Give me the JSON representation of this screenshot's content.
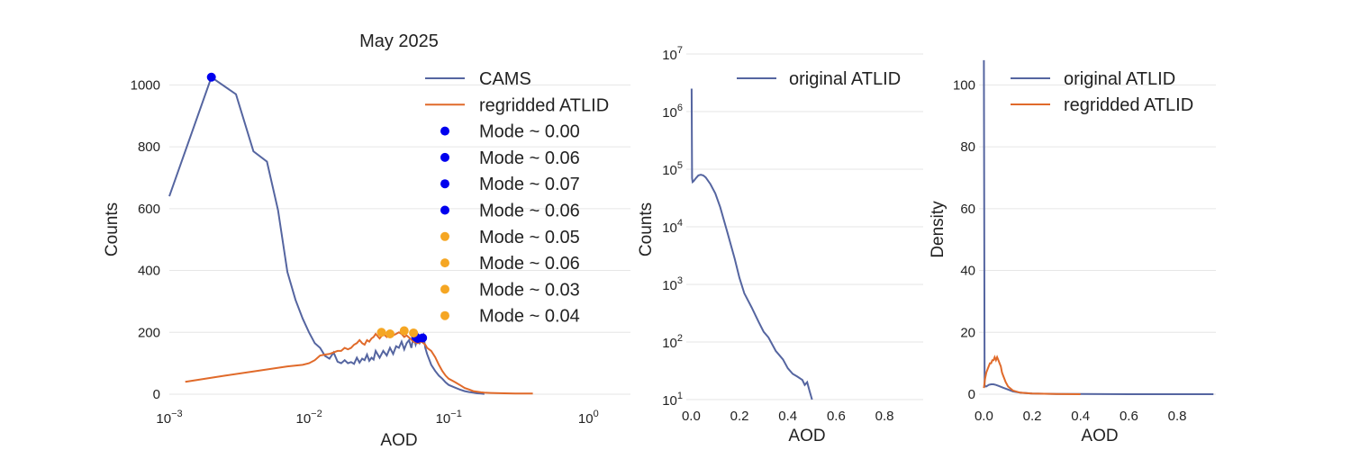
{
  "colors": {
    "cams": "#5565a0",
    "atlid": "#e06a2a",
    "mode_cams": "#0000ee",
    "mode_atlid": "#f5a623"
  },
  "chart_data": [
    {
      "type": "line",
      "title": "May 2025",
      "xlabel": "AOD",
      "ylabel": "Counts",
      "xscale": "log",
      "xlim": [
        0.001,
        2
      ],
      "ylim": [
        0,
        1100
      ],
      "x_ticks": [
        {
          "value": 0.001,
          "base": "10",
          "exp": "−3"
        },
        {
          "value": 0.01,
          "base": "10",
          "exp": "−2"
        },
        {
          "value": 0.1,
          "base": "10",
          "exp": "−1"
        },
        {
          "value": 1,
          "base": "10",
          "exp": "0"
        }
      ],
      "y_ticks": [
        0,
        200,
        400,
        600,
        800,
        1000
      ],
      "grid": true,
      "legend_position": "top-right",
      "series": [
        {
          "name": "CAMS",
          "color": "#5565a0",
          "x": [
            0.001,
            0.002,
            0.003,
            0.004,
            0.005,
            0.006,
            0.007,
            0.008,
            0.009,
            0.01,
            0.011,
            0.012,
            0.013,
            0.014,
            0.015,
            0.016,
            0.017,
            0.018,
            0.019,
            0.02,
            0.021,
            0.022,
            0.023,
            0.024,
            0.025,
            0.026,
            0.027,
            0.028,
            0.029,
            0.03,
            0.032,
            0.034,
            0.036,
            0.038,
            0.04,
            0.042,
            0.044,
            0.046,
            0.048,
            0.05,
            0.052,
            0.054,
            0.056,
            0.058,
            0.06,
            0.062,
            0.064,
            0.066,
            0.068,
            0.07,
            0.075,
            0.08,
            0.085,
            0.09,
            0.095,
            0.1,
            0.11,
            0.12,
            0.13,
            0.14,
            0.15,
            0.16,
            0.17,
            0.18
          ],
          "values": [
            640,
            1025,
            970,
            785,
            752,
            595,
            395,
            305,
            245,
            200,
            165,
            150,
            124,
            115,
            135,
            105,
            100,
            110,
            100,
            104,
            98,
            118,
            102,
            115,
            110,
            128,
            108,
            118,
            112,
            140,
            118,
            140,
            125,
            150,
            130,
            155,
            150,
            170,
            145,
            165,
            175,
            150,
            185,
            160,
            182,
            165,
            175,
            190,
            150,
            130,
            95,
            75,
            60,
            50,
            38,
            30,
            22,
            15,
            10,
            7,
            5,
            3,
            2,
            1
          ]
        },
        {
          "name": "regridded ATLID",
          "color": "#e06a2a",
          "x": [
            0.0013,
            0.0025,
            0.005,
            0.007,
            0.009,
            0.01,
            0.011,
            0.012,
            0.013,
            0.014,
            0.015,
            0.016,
            0.017,
            0.018,
            0.019,
            0.02,
            0.021,
            0.022,
            0.023,
            0.024,
            0.025,
            0.026,
            0.027,
            0.028,
            0.029,
            0.03,
            0.032,
            0.034,
            0.036,
            0.038,
            0.04,
            0.042,
            0.044,
            0.046,
            0.048,
            0.05,
            0.053,
            0.056,
            0.06,
            0.064,
            0.068,
            0.07,
            0.075,
            0.08,
            0.085,
            0.09,
            0.095,
            0.1,
            0.11,
            0.12,
            0.13,
            0.14,
            0.15,
            0.16,
            0.17,
            0.18,
            0.2,
            0.25,
            0.3,
            0.4
          ],
          "values": [
            40,
            60,
            80,
            90,
            95,
            100,
            110,
            125,
            128,
            130,
            135,
            140,
            140,
            150,
            145,
            150,
            160,
            165,
            175,
            165,
            160,
            175,
            170,
            180,
            185,
            195,
            180,
            195,
            185,
            200,
            190,
            195,
            200,
            195,
            185,
            190,
            180,
            170,
            165,
            170,
            160,
            150,
            140,
            120,
            95,
            75,
            60,
            50,
            40,
            30,
            20,
            15,
            10,
            8,
            6,
            5,
            4,
            3,
            2,
            2
          ]
        }
      ],
      "modes": [
        {
          "label": "Mode ~ 0.00",
          "x": 0.002,
          "y": 1025,
          "group": "cams"
        },
        {
          "label": "Mode ~ 0.06",
          "x": 0.058,
          "y": 185,
          "group": "cams"
        },
        {
          "label": "Mode ~ 0.07",
          "x": 0.065,
          "y": 182,
          "group": "cams"
        },
        {
          "label": "Mode ~ 0.06",
          "x": 0.06,
          "y": 180,
          "group": "cams"
        },
        {
          "label": "Mode ~ 0.05",
          "x": 0.048,
          "y": 205,
          "group": "atlid"
        },
        {
          "label": "Mode ~ 0.06",
          "x": 0.056,
          "y": 198,
          "group": "atlid"
        },
        {
          "label": "Mode ~ 0.03",
          "x": 0.033,
          "y": 200,
          "group": "atlid"
        },
        {
          "label": "Mode ~ 0.04",
          "x": 0.038,
          "y": 195,
          "group": "atlid"
        }
      ]
    },
    {
      "type": "line",
      "xlabel": "AOD",
      "ylabel": "Counts",
      "yscale": "log",
      "xlim": [
        -0.02,
        0.96
      ],
      "ylim_log10": [
        1,
        7
      ],
      "x_ticks": [
        "0.0",
        "0.2",
        "0.4",
        "0.6",
        "0.8"
      ],
      "y_ticks": [
        {
          "base": "10",
          "exp": "1"
        },
        {
          "base": "10",
          "exp": "2"
        },
        {
          "base": "10",
          "exp": "3"
        },
        {
          "base": "10",
          "exp": "4"
        },
        {
          "base": "10",
          "exp": "5"
        },
        {
          "base": "10",
          "exp": "6"
        },
        {
          "base": "10",
          "exp": "7"
        }
      ],
      "grid": true,
      "legend_position": "top-right",
      "series": [
        {
          "name": "original ATLID",
          "color": "#5565a0",
          "x": [
            0.002,
            0.004,
            0.006,
            0.01,
            0.02,
            0.03,
            0.04,
            0.05,
            0.06,
            0.08,
            0.1,
            0.12,
            0.15,
            0.18,
            0.2,
            0.22,
            0.25,
            0.28,
            0.3,
            0.32,
            0.35,
            0.38,
            0.4,
            0.42,
            0.44,
            0.46,
            0.47,
            0.48,
            0.49,
            0.5
          ],
          "values": [
            2500000,
            70000,
            60000,
            62000,
            70000,
            78000,
            80000,
            78000,
            72000,
            55000,
            38000,
            22000,
            8000,
            2800,
            1300,
            700,
            400,
            220,
            150,
            120,
            70,
            50,
            35,
            28,
            25,
            22,
            18,
            20,
            14,
            10
          ]
        }
      ]
    },
    {
      "type": "line",
      "xlabel": "AOD",
      "ylabel": "Density",
      "xlim": [
        -0.02,
        0.96
      ],
      "ylim": [
        0,
        110
      ],
      "x_ticks": [
        "0.0",
        "0.2",
        "0.4",
        "0.6",
        "0.8"
      ],
      "y_ticks": [
        0,
        20,
        40,
        60,
        80,
        100
      ],
      "grid": true,
      "legend_position": "top-right",
      "series": [
        {
          "name": "original ATLID",
          "color": "#5565a0",
          "x": [
            0.0,
            0.003,
            0.006,
            0.01,
            0.02,
            0.03,
            0.04,
            0.05,
            0.06,
            0.08,
            0.1,
            0.12,
            0.15,
            0.2,
            0.3,
            0.4,
            0.5,
            0.6,
            0.7,
            0.8,
            0.9,
            0.95
          ],
          "values": [
            108,
            3,
            2.5,
            2.5,
            3,
            3.2,
            3.2,
            3,
            2.7,
            2.1,
            1.5,
            0.9,
            0.5,
            0.2,
            0.1,
            0.05,
            0.02,
            0.01,
            0,
            0,
            0,
            0
          ]
        },
        {
          "name": "regridded ATLID",
          "color": "#e06a2a",
          "x": [
            0.0,
            0.005,
            0.01,
            0.015,
            0.02,
            0.025,
            0.03,
            0.035,
            0.04,
            0.045,
            0.05,
            0.055,
            0.06,
            0.065,
            0.07,
            0.075,
            0.08,
            0.09,
            0.1,
            0.12,
            0.15,
            0.2,
            0.3,
            0.4
          ],
          "values": [
            2,
            5,
            7,
            8,
            9,
            10,
            10,
            11,
            11,
            12,
            11,
            12,
            11,
            10,
            9,
            7,
            6,
            4,
            2.5,
            1.2,
            0.5,
            0.2,
            0.1,
            0
          ]
        }
      ]
    }
  ]
}
